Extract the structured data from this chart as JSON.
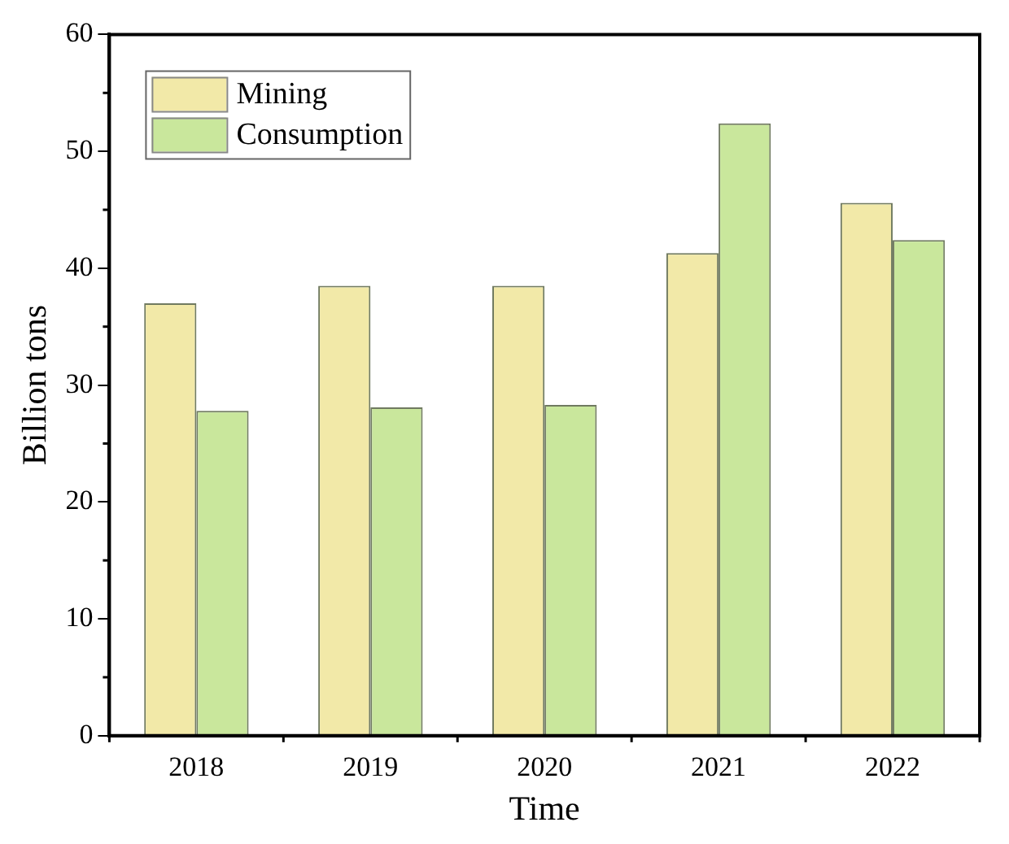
{
  "chart_data": {
    "type": "bar",
    "xlabel": "Time",
    "ylabel": "Billion tons",
    "categories": [
      "2018",
      "2019",
      "2020",
      "2021",
      "2022"
    ],
    "series": [
      {
        "name": "Mining",
        "color": "#f2e9a8",
        "values": [
          37.0,
          38.5,
          38.5,
          41.3,
          45.6
        ]
      },
      {
        "name": "Consumption",
        "color": "#c9e79c",
        "values": [
          27.8,
          28.1,
          28.3,
          52.4,
          42.4
        ]
      }
    ],
    "ylim": [
      0,
      60
    ],
    "yticks": [
      0,
      10,
      20,
      30,
      40,
      50,
      60
    ],
    "grid": false,
    "legend": "top left"
  }
}
